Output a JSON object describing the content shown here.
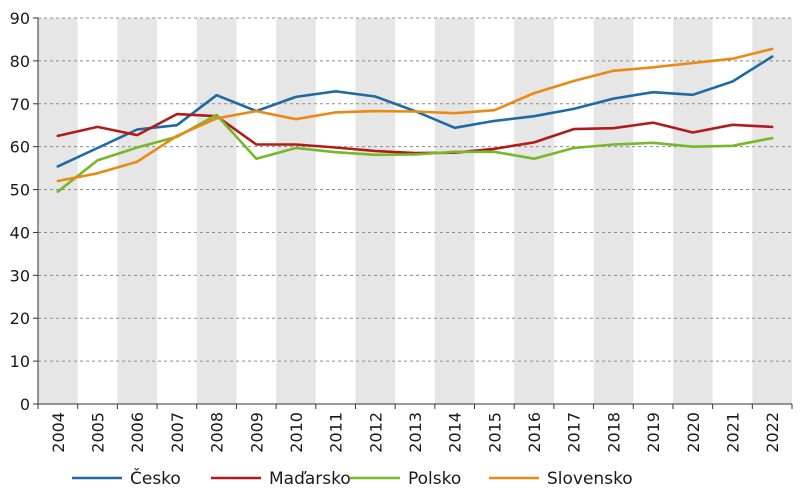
{
  "chart_data": {
    "type": "line",
    "title": "",
    "xlabel": "",
    "ylabel": "",
    "x": [
      "2004",
      "2005",
      "2006",
      "2007",
      "2008",
      "2009",
      "2010",
      "2011",
      "2012",
      "2013",
      "2014",
      "2015",
      "2016",
      "2017",
      "2018",
      "2019",
      "2020",
      "2021",
      "2022"
    ],
    "ylim": [
      0,
      90
    ],
    "yticks": [
      0,
      10,
      20,
      30,
      40,
      50,
      60,
      70,
      80,
      90
    ],
    "grid": "horizontal dashed",
    "alternating_year_bands": true,
    "legend_position": "bottom",
    "series": [
      {
        "name": "Česko",
        "color": "#1f6aa5",
        "values": [
          55.4,
          59.7,
          64.0,
          65.0,
          72.0,
          68.3,
          71.6,
          72.9,
          71.7,
          68.3,
          64.4,
          66.0,
          67.1,
          68.8,
          71.2,
          72.7,
          72.1,
          75.2,
          81.0
        ]
      },
      {
        "name": "Maďarsko",
        "color": "#b31b1b",
        "values": [
          62.5,
          64.6,
          62.7,
          67.6,
          67.1,
          60.5,
          60.5,
          59.8,
          59.0,
          58.5,
          58.6,
          59.5,
          61.0,
          64.1,
          64.3,
          65.6,
          63.3,
          65.1,
          64.6
        ]
      },
      {
        "name": "Polsko",
        "color": "#76b82a",
        "values": [
          49.5,
          56.8,
          59.8,
          62.3,
          67.4,
          57.2,
          59.7,
          58.7,
          58.1,
          58.2,
          58.8,
          58.8,
          57.2,
          59.7,
          60.5,
          60.9,
          60.0,
          60.2,
          62.0
        ]
      },
      {
        "name": "Slovensko",
        "color": "#e98a15",
        "values": [
          52.0,
          53.8,
          56.5,
          62.5,
          66.6,
          68.3,
          66.4,
          68.0,
          68.3,
          68.2,
          67.8,
          68.5,
          72.5,
          75.3,
          77.7,
          78.5,
          79.5,
          80.5,
          82.8
        ]
      }
    ]
  }
}
